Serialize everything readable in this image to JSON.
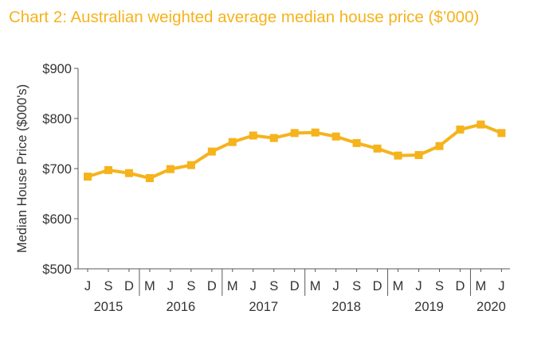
{
  "title": "Chart 2: Australian weighted average median house price ($’000)",
  "colors": {
    "title": "#f5b31c",
    "line": "#f5b31c",
    "text": "#333333",
    "axis": "#595959"
  },
  "chart_data": {
    "type": "line",
    "title": "Chart 2: Australian weighted average median house price ($’000)",
    "xlabel": "",
    "ylabel": "Median House Price ($000's)",
    "ylim": [
      500,
      900
    ],
    "yticks": [
      500,
      600,
      700,
      800,
      900
    ],
    "ytick_labels": [
      "$500",
      "$600",
      "$700",
      "$800",
      "$900"
    ],
    "grid": false,
    "legend": "none",
    "categories": [
      "J",
      "S",
      "D",
      "M",
      "J",
      "S",
      "D",
      "M",
      "J",
      "S",
      "D",
      "M",
      "J",
      "S",
      "D",
      "M",
      "J",
      "S",
      "D",
      "M",
      "J"
    ],
    "year_labels": [
      {
        "label": "2015",
        "from": 0,
        "to": 2
      },
      {
        "label": "2016",
        "from": 3,
        "to": 6
      },
      {
        "label": "2017",
        "from": 7,
        "to": 10
      },
      {
        "label": "2018",
        "from": 11,
        "to": 14
      },
      {
        "label": "2019",
        "from": 15,
        "to": 18
      },
      {
        "label": "2020",
        "from": 19,
        "to": 20
      }
    ],
    "year_separators_after": [
      2,
      6,
      10,
      14,
      18
    ],
    "series": [
      {
        "values": [
          684,
          697,
          691,
          681,
          699,
          707,
          734,
          753,
          766,
          761,
          771,
          772,
          764,
          751,
          740,
          726,
          727,
          745,
          778,
          788,
          771
        ]
      }
    ]
  }
}
